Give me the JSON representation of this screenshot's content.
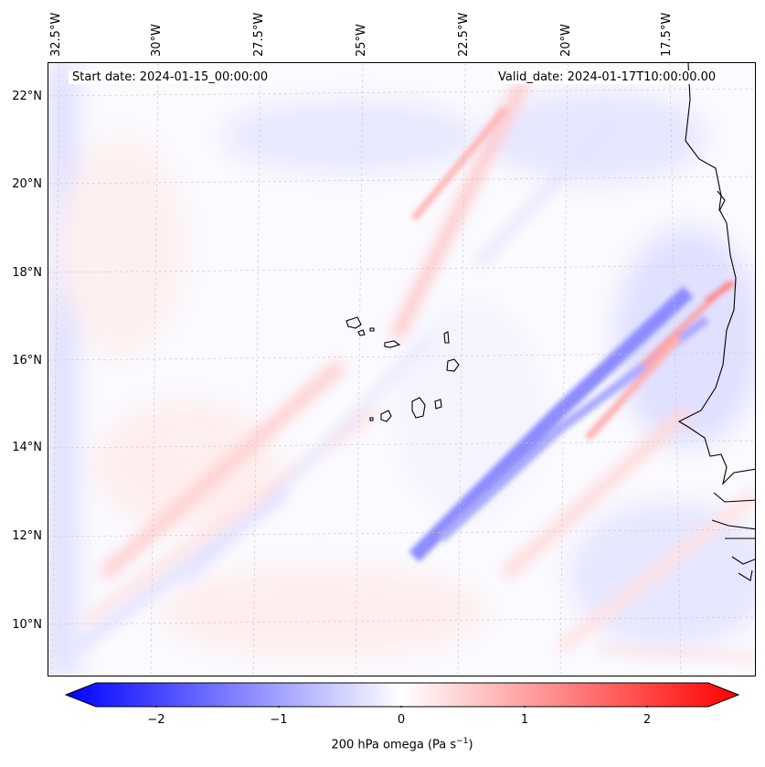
{
  "map": {
    "start_label": "Start date: 2024-01-15_00:00:00",
    "valid_label": "Valid_date: 2024-01-17T10:00:00.00",
    "lon_labels": [
      "32.5°W",
      "30°W",
      "27.5°W",
      "25°W",
      "22.5°W",
      "20°W",
      "17.5°W"
    ],
    "lat_labels": [
      "22°N",
      "20°N",
      "18°N",
      "16°N",
      "14°N",
      "12°N",
      "10°N"
    ]
  },
  "colorbar": {
    "title": "200 hPa omega (Pa s",
    "title_exp": "−1",
    "title_close": ")",
    "min": -2.5,
    "max": 2.5,
    "ticks": [
      "−2",
      "−1",
      "0",
      "1",
      "2"
    ],
    "tick_values": [
      -2,
      -1,
      0,
      1,
      2
    ],
    "color_low": "#0000ff",
    "color_mid": "#ffffff",
    "color_high": "#ff0000"
  },
  "chart_data": {
    "type": "heatmap",
    "variable": "200 hPa omega",
    "units": "Pa s^-1",
    "lon_ticks": [
      -32.5,
      -30,
      -27.5,
      -25,
      -22.5,
      -20,
      -17.5
    ],
    "lat_ticks": [
      22,
      20,
      18,
      16,
      14,
      12,
      10
    ],
    "color_range": [
      -2.5,
      2.5
    ]
  }
}
